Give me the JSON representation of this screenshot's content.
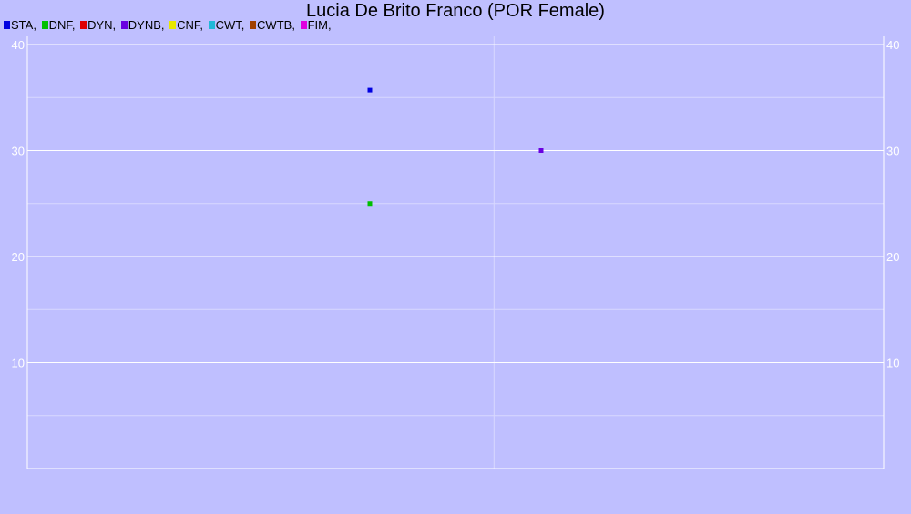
{
  "colors": {
    "background": "#bfbfff",
    "grid_major": "#ffffff",
    "grid_minor": "#d8d8ff",
    "axis_text": "#ffffff"
  },
  "chart_data": {
    "type": "scatter",
    "title": "Lucia De Brito Franco (POR Female)",
    "xlabel": "",
    "ylabel": "",
    "ylim": [
      0,
      40
    ],
    "y_ticks": [
      10,
      20,
      30,
      40
    ],
    "y_tick_labels": [
      "10",
      "20",
      "30",
      "40"
    ],
    "y_minor_ticks": [
      5,
      15,
      25,
      35
    ],
    "x_domain": [
      0,
      1
    ],
    "x_gridlines": [
      0.545
    ],
    "grid": true,
    "legend_position": "top-left",
    "legend": [
      {
        "label": "STA,",
        "color": "#0000e0"
      },
      {
        "label": "DNF,",
        "color": "#00c000"
      },
      {
        "label": "DYN,",
        "color": "#e00000"
      },
      {
        "label": "DYNB,",
        "color": "#6a00e0"
      },
      {
        "label": "CNF,",
        "color": "#e8e800"
      },
      {
        "label": "CWT,",
        "color": "#20b8d8"
      },
      {
        "label": "CWTB,",
        "color": "#a04000"
      },
      {
        "label": "FIM,",
        "color": "#e000e0"
      }
    ],
    "series": [
      {
        "name": "STA,",
        "color": "#0000e0",
        "points": [
          {
            "x": 0.4,
            "y": 35.7
          }
        ]
      },
      {
        "name": "DNF,",
        "color": "#00c000",
        "points": [
          {
            "x": 0.4,
            "y": 25
          }
        ]
      },
      {
        "name": "DYNB,",
        "color": "#6a00e0",
        "points": [
          {
            "x": 0.6,
            "y": 30
          }
        ]
      }
    ]
  }
}
